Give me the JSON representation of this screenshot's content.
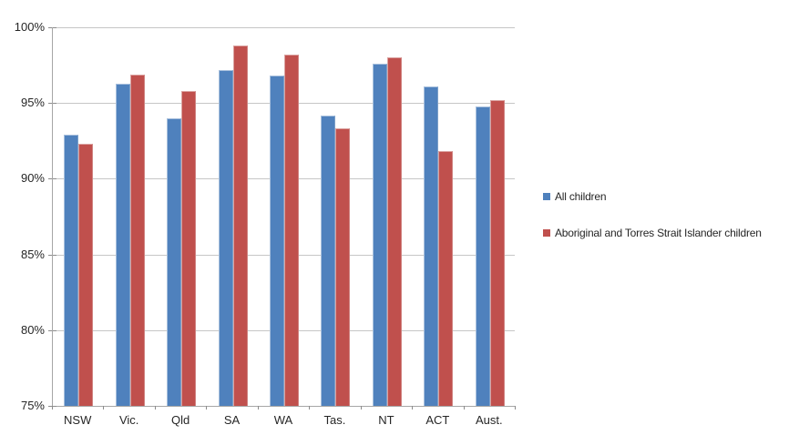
{
  "chart_data": {
    "type": "bar",
    "title": "",
    "xlabel": "",
    "ylabel": "",
    "categories": [
      "NSW",
      "Vic.",
      "Qld",
      "SA",
      "WA",
      "Tas.",
      "NT",
      "ACT",
      "Aust."
    ],
    "series": [
      {
        "name": "All children",
        "color": "#4F81BD",
        "values": [
          92.9,
          96.3,
          94.0,
          97.2,
          96.8,
          94.2,
          97.6,
          96.1,
          94.8
        ]
      },
      {
        "name": "Aboriginal and Torres Strait Islander children",
        "color": "#C0504D",
        "values": [
          92.3,
          96.9,
          95.8,
          98.8,
          98.2,
          93.3,
          98.0,
          91.8,
          95.2
        ]
      }
    ],
    "ylim": [
      75,
      100
    ],
    "ytick_step": 5,
    "ytick_labels": [
      "75%",
      "80%",
      "85%",
      "90%",
      "95%",
      "100%"
    ],
    "grid": true,
    "legend_position": "right"
  },
  "style": {
    "gridline_color": "#C6C6C6",
    "axis_color": "#A6A6A6",
    "text_color": "#262626",
    "background_color": "#FFFFFF"
  }
}
